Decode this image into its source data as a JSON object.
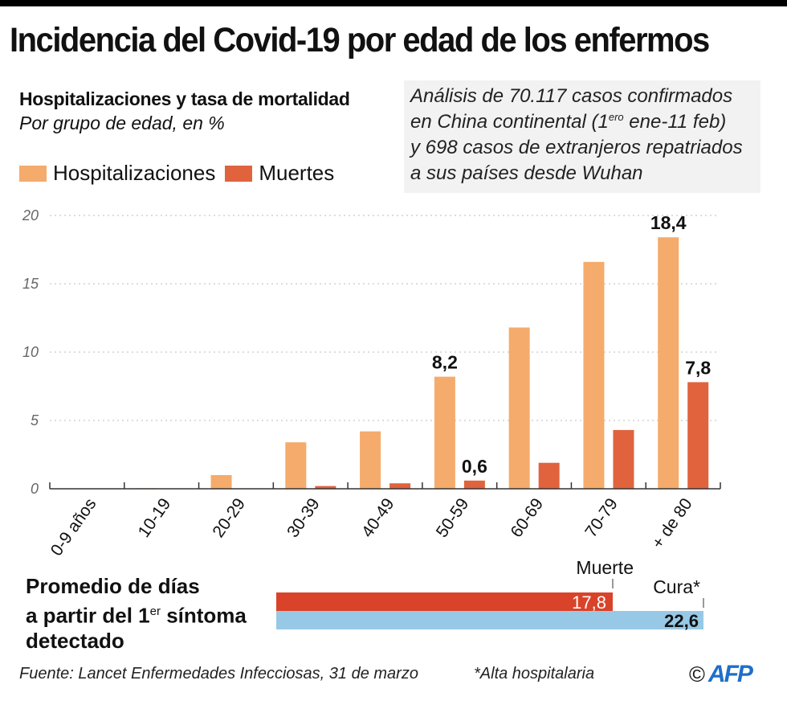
{
  "header": {
    "title": "Incidencia del Covid-19 por edad de los enfermos",
    "subtitle": "Hospitalizaciones y tasa de mortalidad",
    "subtitle_italic": "Por grupo de edad, en %"
  },
  "note": {
    "line1": "Análisis de 70.117 casos confirmados",
    "line2_pre": "en China continental (1",
    "line2_sup": "ero",
    "line2_post": " ene-11 feb)",
    "line3": "y 698 casos de extranjeros repatriados",
    "line4": "a sus países desde Wuhan"
  },
  "colors": {
    "hospitalizaciones": "#f5ab6b",
    "muertes": "#e0633d",
    "muerte_bar": "#d9432a",
    "cura_bar": "#97c9e6",
    "grid": "#bbbbbb",
    "axis": "#333333",
    "afp": "#1e6fc8"
  },
  "chart_data": {
    "type": "bar",
    "title": "Hospitalizaciones y tasa de mortalidad",
    "subtitle": "Por grupo de edad, en %",
    "xlabel": "",
    "ylabel": "%",
    "ylim": [
      0,
      20
    ],
    "yticks": [
      0,
      5,
      10,
      15,
      20
    ],
    "ytick_labels": [
      "0",
      "5",
      "10",
      "15",
      "20"
    ],
    "grid": true,
    "legend_position": "top-left",
    "categories": [
      "0-9 años",
      "10-19",
      "20-29",
      "30-39",
      "40-49",
      "50-59",
      "60-69",
      "70-79",
      "+ de 80"
    ],
    "series": [
      {
        "name": "Hospitalizaciones",
        "color": "#f5ab6b",
        "values": [
          0.0,
          0.04,
          1.0,
          3.4,
          4.2,
          8.2,
          11.8,
          16.6,
          18.4
        ]
      },
      {
        "name": "Muertes",
        "color": "#e0633d",
        "values": [
          0.0,
          0.01,
          0.03,
          0.2,
          0.4,
          0.6,
          1.9,
          4.3,
          7.8
        ]
      }
    ],
    "annotations": [
      {
        "series": "Hospitalizaciones",
        "category": "50-59",
        "text": "8,2"
      },
      {
        "series": "Muertes",
        "category": "50-59",
        "text": "0,6"
      },
      {
        "series": "Hospitalizaciones",
        "category": "+ de 80",
        "text": "18,4"
      },
      {
        "series": "Muertes",
        "category": "+ de 80",
        "text": "7,8"
      }
    ]
  },
  "days": {
    "title_line1": "Promedio de días",
    "title_line2_pre": "a partir del 1",
    "title_line2_sup": "er",
    "title_line2_post": " síntoma",
    "title_line3": "detectado",
    "max": 22.6,
    "bars": [
      {
        "name": "Muerte",
        "value": 17.8,
        "label": "17,8"
      },
      {
        "name": "Cura*",
        "value": 22.6,
        "label": "22,6"
      }
    ]
  },
  "footer": {
    "source": "Fuente:  Lancet Enfermedades Infecciosas, 31 de marzo",
    "footnote": "*Alta hospitalaria",
    "copyright": "©",
    "logo": "AFP"
  }
}
